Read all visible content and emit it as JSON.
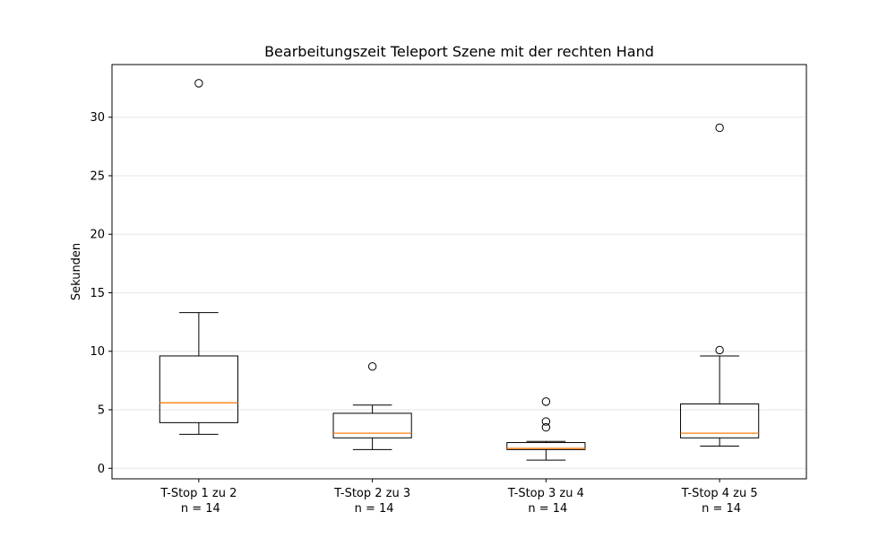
{
  "chart_data": {
    "type": "boxplot",
    "title": "Bearbeitungszeit Teleport Szene mit der rechten Hand",
    "xlabel": "",
    "ylabel": "Sekunden",
    "ylim": [
      -0.9,
      34.5
    ],
    "yticks": [
      0,
      5,
      10,
      15,
      20,
      25,
      30
    ],
    "grid": "horizontal",
    "colors": {
      "box": "#000000",
      "median": "#ff7f0e",
      "grid": "#e6e6e6"
    },
    "categories": [
      {
        "label": "T-Stop 1 zu 2",
        "sublabel": "n = 14"
      },
      {
        "label": "T-Stop 2 zu 3",
        "sublabel": "n = 14"
      },
      {
        "label": "T-Stop 3 zu 4",
        "sublabel": "n = 14"
      },
      {
        "label": "T-Stop 4 zu 5",
        "sublabel": "n = 14"
      }
    ],
    "boxes": [
      {
        "whisker_low": 2.9,
        "q1": 3.9,
        "median": 5.6,
        "q3": 9.6,
        "whisker_high": 13.3,
        "outliers": [
          32.9
        ]
      },
      {
        "whisker_low": 1.6,
        "q1": 2.6,
        "median": 3.0,
        "q3": 4.7,
        "whisker_high": 5.4,
        "outliers": [
          8.7
        ]
      },
      {
        "whisker_low": 0.7,
        "q1": 1.6,
        "median": 1.7,
        "q3": 2.2,
        "whisker_high": 2.3,
        "outliers": [
          3.5,
          4.0,
          5.7
        ]
      },
      {
        "whisker_low": 1.9,
        "q1": 2.6,
        "median": 3.0,
        "q3": 5.5,
        "whisker_high": 9.6,
        "outliers": [
          10.1,
          29.1
        ]
      }
    ]
  }
}
